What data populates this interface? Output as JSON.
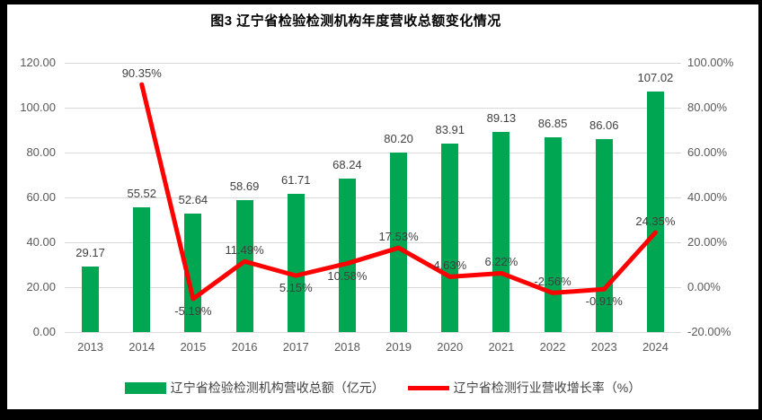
{
  "title": "图3 辽宁省检验检测机构年度营收总额变化情况",
  "colors": {
    "bar": "#00A651",
    "line": "#FF0000",
    "grid": "#D9D9D9",
    "tick_text": "#595959",
    "data_label": "#404040",
    "frame": "#000000",
    "background": "#FFFFFF"
  },
  "legend": {
    "bar_label": "辽宁省检验检测机构营收总额（亿元）",
    "line_label": "辽宁省检测行业营收增长率（%）"
  },
  "chart_data": {
    "type": "combo",
    "title": "图3 辽宁省检验检测机构年度营收总额变化情况",
    "categories": [
      "2013",
      "2014",
      "2015",
      "2016",
      "2017",
      "2018",
      "2019",
      "2020",
      "2021",
      "2022",
      "2023",
      "2024"
    ],
    "series": [
      {
        "name": "辽宁省检验检测机构营收总额（亿元）",
        "type": "bar",
        "axis": "left",
        "color": "#00A651",
        "values": [
          29.17,
          55.52,
          52.64,
          58.69,
          61.71,
          68.24,
          80.2,
          83.91,
          89.13,
          86.85,
          86.06,
          107.02
        ]
      },
      {
        "name": "辽宁省检测行业营收增长率（%）",
        "type": "line",
        "axis": "right",
        "color": "#FF0000",
        "values": [
          null,
          90.35,
          -5.19,
          11.49,
          5.15,
          10.58,
          17.53,
          4.63,
          6.22,
          -2.56,
          -0.91,
          24.35
        ],
        "label_positions": [
          null,
          "above",
          "below",
          "above",
          "below",
          "below",
          "above",
          "above",
          "above",
          "above",
          "below",
          "above"
        ]
      }
    ],
    "left_axis": {
      "min": 0,
      "max": 120,
      "tick_labels": [
        "120.00",
        "100.00",
        "80.00",
        "60.00",
        "40.00",
        "20.00",
        "0.00"
      ]
    },
    "right_axis": {
      "min": -20,
      "max": 100,
      "tick_labels": [
        "100.00%",
        "80.00%",
        "60.00%",
        "40.00%",
        "20.00%",
        "0.00%",
        "-20.00%"
      ]
    },
    "grid": true,
    "legend_position": "bottom"
  }
}
